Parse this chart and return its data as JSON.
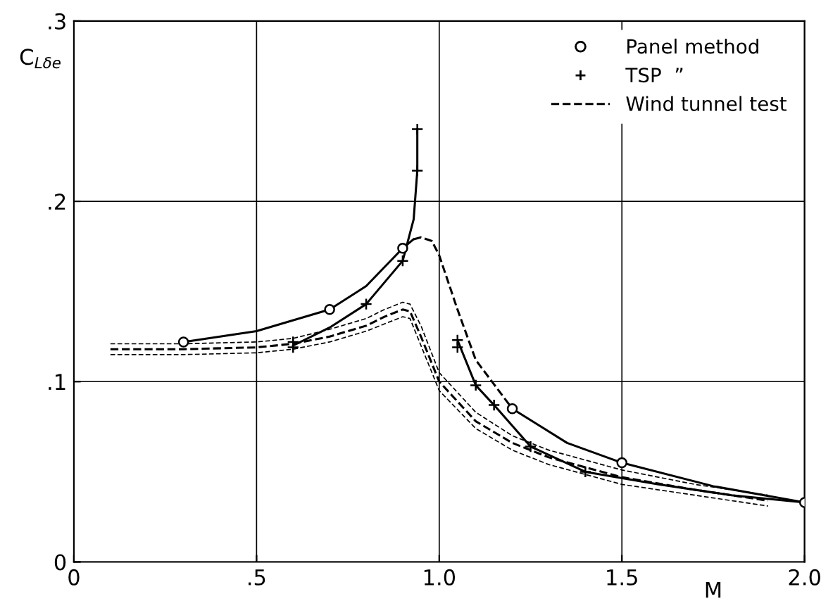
{
  "chart_data": {
    "type": "line",
    "xlabel": "M",
    "ylabel": "C$_{Lδe}$",
    "xlim": [
      0,
      2.0
    ],
    "ylim": [
      0,
      0.3
    ],
    "xticks": [
      0,
      {
        "value": 0.5,
        "label": ".5"
      },
      {
        "value": 1.0,
        "label": "1.0"
      },
      {
        "value": 1.5,
        "label": "1.5"
      },
      {
        "value": 2.0,
        "label": "2.0"
      }
    ],
    "yticks": [
      0,
      {
        "value": 0.1,
        "label": ".1"
      },
      {
        "value": 0.2,
        "label": ".2"
      },
      {
        "value": 0.3,
        "label": ".3"
      }
    ],
    "grid": true,
    "legend": "top right",
    "series": [
      {
        "name": "Panel method",
        "type": "scatter",
        "marker": "circle",
        "color": "#000000",
        "x": [
          0.3,
          0.7,
          0.9,
          1.2,
          1.5,
          2.0
        ],
        "values": [
          0.122,
          0.14,
          0.174,
          0.085,
          0.055,
          0.033
        ]
      },
      {
        "line_style": "solid",
        "color": "#000000",
        "x": [
          0.3,
          0.5,
          0.7,
          0.8,
          0.9,
          0.93
        ],
        "values": [
          0.122,
          0.128,
          0.14,
          0.153,
          0.174,
          0.179
        ]
      },
      {
        "line_style": "dashed",
        "color": "#000000",
        "x": [
          0.93,
          0.95,
          0.98,
          1.0,
          1.05,
          1.1,
          1.2
        ],
        "values": [
          0.179,
          0.18,
          0.178,
          0.17,
          0.14,
          0.112,
          0.085
        ]
      },
      {
        "line_style": "solid",
        "color": "#000000",
        "x": [
          1.2,
          1.35,
          1.5,
          1.75,
          2.0
        ],
        "values": [
          0.085,
          0.066,
          0.055,
          0.042,
          0.033
        ]
      },
      {
        "name": "TSP  ”",
        "type": "scatter",
        "marker": "cross",
        "color": "#000000",
        "x": [
          0.6,
          0.6,
          0.8,
          0.9,
          0.94,
          0.94,
          1.05,
          1.05,
          1.1,
          1.15,
          1.25,
          1.4
        ],
        "values": [
          0.122,
          0.119,
          0.143,
          0.167,
          0.217,
          0.24,
          0.123,
          0.119,
          0.098,
          0.087,
          0.064,
          0.05
        ]
      },
      {
        "line_style": "solid",
        "color": "#000000",
        "x": [
          0.6,
          0.7,
          0.8,
          0.9,
          0.93,
          0.94,
          0.94,
          null,
          1.05,
          1.1,
          1.15,
          1.25,
          1.4,
          1.6,
          1.8,
          2.0
        ],
        "values": [
          0.12,
          0.13,
          0.143,
          0.167,
          0.19,
          0.217,
          0.24,
          null,
          0.123,
          0.098,
          0.087,
          0.064,
          0.05,
          0.043,
          0.037,
          0.033
        ]
      },
      {
        "name": "Wind tunnel test",
        "line_style": "dashed",
        "color": "#000000",
        "x": [
          0.1,
          0.3,
          0.5,
          0.6,
          0.7,
          0.8,
          0.85,
          0.9,
          0.92,
          0.95,
          1.0,
          1.1,
          1.2,
          1.3,
          1.5,
          1.7,
          1.9
        ],
        "values": [
          0.118,
          0.118,
          0.119,
          0.121,
          0.125,
          0.131,
          0.136,
          0.14,
          0.139,
          0.125,
          0.1,
          0.078,
          0.066,
          0.058,
          0.047,
          0.04,
          0.034
        ]
      },
      {
        "line_style": "dotted",
        "color": "#000000",
        "x": [
          0.1,
          0.3,
          0.5,
          0.6,
          0.7,
          0.8,
          0.85,
          0.9,
          0.92,
          0.95,
          1.0,
          1.1,
          1.2,
          1.3,
          1.5,
          1.7,
          1.9
        ],
        "values": [
          0.115,
          0.115,
          0.116,
          0.118,
          0.122,
          0.128,
          0.132,
          0.136,
          0.135,
          0.12,
          0.095,
          0.074,
          0.062,
          0.054,
          0.043,
          0.037,
          0.031
        ]
      },
      {
        "line_style": "dotted",
        "color": "#000000",
        "x": [
          0.1,
          0.3,
          0.5,
          0.6,
          0.7,
          0.8,
          0.85,
          0.9,
          0.92,
          0.95,
          1.0,
          1.1,
          1.2,
          1.3,
          1.5,
          1.7,
          1.9
        ],
        "values": [
          0.121,
          0.121,
          0.122,
          0.124,
          0.129,
          0.135,
          0.14,
          0.144,
          0.143,
          0.131,
          0.105,
          0.083,
          0.07,
          0.062,
          0.051,
          0.043,
          0.037
        ]
      }
    ]
  }
}
